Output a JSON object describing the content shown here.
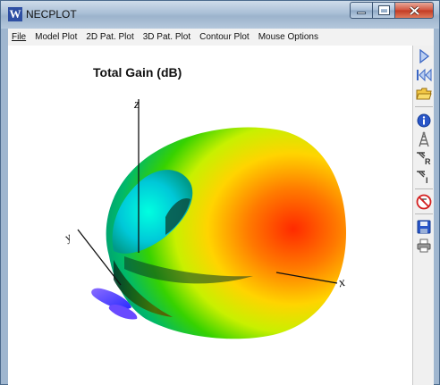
{
  "window": {
    "icon_letter": "W",
    "title": "NECPLOT"
  },
  "menu": [
    "File",
    "Model Plot",
    "2D Pat. Plot",
    "3D Pat. Plot",
    "Contour Plot",
    "Mouse Options"
  ],
  "plot": {
    "title": "Total Gain (dB)",
    "axes": {
      "z_label": "z",
      "y_label": "y",
      "x_label": "x"
    }
  },
  "toolbar": [
    "play-icon",
    "rewind-icon",
    "open-folder-icon",
    "info-icon",
    "antenna-icon",
    "antenna-r-icon",
    "antenna-i-icon",
    "no-antenna-icon",
    "save-icon",
    "print-icon"
  ],
  "colors": {
    "title_bar": "#a9bfd6",
    "close_button": "#c23a22",
    "toolbar_accent": "#3a66c4"
  }
}
